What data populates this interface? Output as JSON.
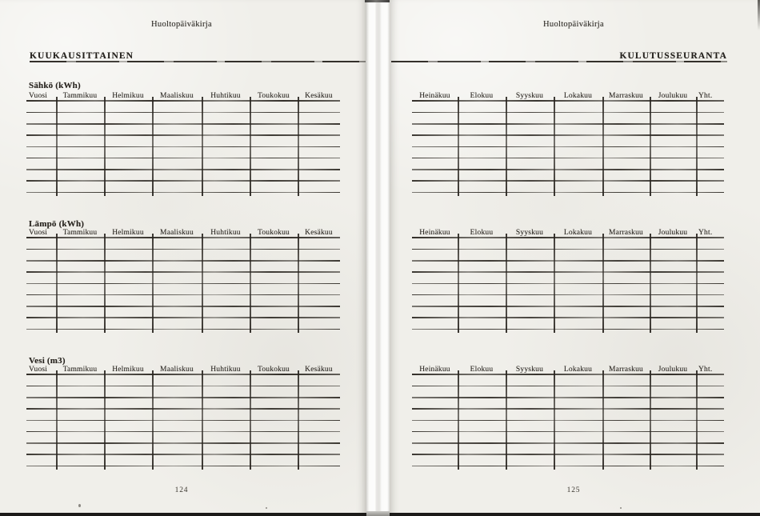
{
  "book": {
    "running_header": "Huoltopäiväkirja",
    "left_page": {
      "title": "KUUKAUSITTAINEN",
      "page_number": "124",
      "column_headers": [
        "Vuosi",
        "Tammikuu",
        "Helmikuu",
        "Maaliskuu",
        "Huhtikuu",
        "Toukokuu",
        "Kesäkuu"
      ],
      "section_labels": [
        "Sähkö (kWh)",
        "Lämpö (kWh)",
        "Vesi (m3)"
      ],
      "rows_per_table": 8,
      "table_cells_empty": true
    },
    "right_page": {
      "title": "KULUTUSSEURANTA",
      "page_number": "125",
      "column_headers": [
        "Heinäkuu",
        "Elokuu",
        "Syyskuu",
        "Lokakuu",
        "Marraskuu",
        "Joulukuu",
        "Yht."
      ],
      "rows_per_table": 8,
      "table_cells_empty": true
    },
    "colors": {
      "paper": "#f0efea",
      "ink": "#282420",
      "table_line": "#2c2822"
    }
  }
}
